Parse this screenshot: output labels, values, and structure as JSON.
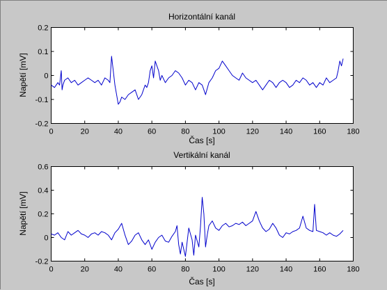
{
  "colors": {
    "background": "#c8c8c8",
    "axes_face": "#ffffff",
    "line": "#0000cc"
  },
  "chart_data": [
    {
      "type": "line",
      "title": "Horizontální kanál",
      "xlabel": "Čas [s]",
      "ylabel": "Napětí [mV]",
      "xlim": [
        0,
        180
      ],
      "ylim": [
        -0.2,
        0.2
      ],
      "xticks": [
        "0",
        "20",
        "40",
        "60",
        "80",
        "100",
        "120",
        "140",
        "160",
        "180"
      ],
      "yticks": [
        "-0.2",
        "-0.1",
        "0",
        "0.1",
        "0.2"
      ],
      "grid": false,
      "series": [
        {
          "x": [
            0,
            2,
            4,
            5,
            6,
            6.5,
            7,
            8,
            10,
            12,
            14,
            16,
            18,
            20,
            22,
            24,
            26,
            28,
            30,
            32,
            34,
            35,
            36,
            37,
            38,
            39,
            40,
            41,
            42,
            44,
            46,
            48,
            50,
            52,
            54,
            56,
            57,
            58,
            59,
            60,
            61,
            62,
            63,
            64,
            65,
            66,
            68,
            70,
            72,
            74,
            76,
            78,
            80,
            82,
            84,
            86,
            88,
            90,
            92,
            94,
            96,
            98,
            100,
            102,
            104,
            106,
            108,
            110,
            112,
            114,
            116,
            118,
            120,
            122,
            124,
            126,
            128,
            130,
            132,
            134,
            136,
            138,
            140,
            142,
            144,
            146,
            148,
            150,
            152,
            154,
            156,
            158,
            160,
            162,
            164,
            166,
            168,
            170,
            171,
            172,
            173,
            174
          ],
          "y": [
            -0.04,
            -0.05,
            -0.03,
            -0.04,
            0.02,
            -0.06,
            -0.04,
            -0.02,
            -0.01,
            -0.03,
            -0.02,
            -0.04,
            -0.03,
            -0.02,
            -0.01,
            -0.02,
            -0.03,
            -0.02,
            -0.04,
            -0.01,
            -0.02,
            -0.03,
            0.08,
            0.02,
            -0.04,
            -0.08,
            -0.12,
            -0.11,
            -0.09,
            -0.1,
            -0.08,
            -0.07,
            -0.06,
            -0.1,
            -0.08,
            -0.04,
            -0.05,
            -0.03,
            0.02,
            0.04,
            -0.01,
            0.06,
            0.04,
            0.02,
            -0.02,
            0.0,
            -0.03,
            -0.01,
            0.0,
            0.02,
            0.01,
            -0.01,
            -0.04,
            -0.02,
            -0.03,
            -0.06,
            -0.03,
            -0.04,
            -0.08,
            -0.03,
            -0.01,
            0.02,
            0.03,
            0.06,
            0.04,
            0.02,
            0.0,
            -0.01,
            -0.02,
            0.01,
            -0.01,
            -0.02,
            -0.03,
            -0.02,
            -0.04,
            -0.06,
            -0.04,
            -0.02,
            -0.03,
            -0.05,
            -0.03,
            -0.02,
            -0.03,
            -0.05,
            -0.04,
            -0.02,
            -0.03,
            -0.01,
            -0.02,
            -0.04,
            -0.03,
            -0.05,
            -0.03,
            -0.04,
            -0.01,
            -0.03,
            -0.02,
            -0.01,
            0.02,
            0.06,
            0.04,
            0.07
          ]
        }
      ]
    },
    {
      "type": "line",
      "title": "Vertikální kanál",
      "xlabel": "Čas [s]",
      "ylabel": "Napětí [mV]",
      "xlim": [
        0,
        180
      ],
      "ylim": [
        -0.2,
        0.6
      ],
      "xticks": [
        "0",
        "20",
        "40",
        "60",
        "80",
        "100",
        "120",
        "140",
        "160",
        "180"
      ],
      "yticks": [
        "-0.2",
        "0",
        "0.2",
        "0.4",
        "0.6"
      ],
      "grid": false,
      "series": [
        {
          "x": [
            0,
            2,
            4,
            6,
            8,
            10,
            12,
            14,
            16,
            18,
            20,
            22,
            24,
            26,
            28,
            30,
            32,
            34,
            36,
            38,
            40,
            42,
            44,
            46,
            48,
            50,
            52,
            54,
            56,
            58,
            60,
            62,
            64,
            66,
            68,
            70,
            72,
            74,
            75,
            76,
            77,
            78,
            80,
            82,
            84,
            85,
            86,
            88,
            89,
            90,
            91,
            92,
            93,
            94,
            96,
            98,
            100,
            102,
            104,
            106,
            108,
            110,
            112,
            114,
            116,
            118,
            120,
            122,
            124,
            126,
            128,
            130,
            132,
            134,
            136,
            138,
            140,
            142,
            144,
            146,
            148,
            150,
            152,
            154,
            156,
            157,
            158,
            160,
            162,
            164,
            166,
            168,
            170,
            172,
            174
          ],
          "y": [
            0.03,
            0.02,
            0.04,
            0.0,
            -0.02,
            0.05,
            0.02,
            0.04,
            0.06,
            0.03,
            0.02,
            0.0,
            0.03,
            0.04,
            0.02,
            0.05,
            0.04,
            0.02,
            -0.02,
            0.04,
            0.07,
            0.12,
            0.02,
            -0.06,
            -0.03,
            0.02,
            0.04,
            -0.02,
            -0.06,
            -0.02,
            -0.1,
            -0.04,
            0.0,
            0.02,
            -0.03,
            -0.04,
            0.01,
            0.05,
            0.1,
            -0.06,
            -0.14,
            -0.04,
            -0.16,
            0.08,
            -0.02,
            -0.15,
            0.02,
            -0.08,
            0.1,
            0.34,
            0.2,
            -0.08,
            0.02,
            0.1,
            0.14,
            0.08,
            0.06,
            0.1,
            0.12,
            0.09,
            0.1,
            0.12,
            0.11,
            0.13,
            0.1,
            0.12,
            0.14,
            0.22,
            0.14,
            0.08,
            0.05,
            0.07,
            0.12,
            0.08,
            0.02,
            0.0,
            0.04,
            0.03,
            0.05,
            0.06,
            0.08,
            0.18,
            0.08,
            0.06,
            0.05,
            0.28,
            0.06,
            0.05,
            0.04,
            0.02,
            0.04,
            0.02,
            0.01,
            0.03,
            0.06
          ]
        }
      ]
    }
  ]
}
